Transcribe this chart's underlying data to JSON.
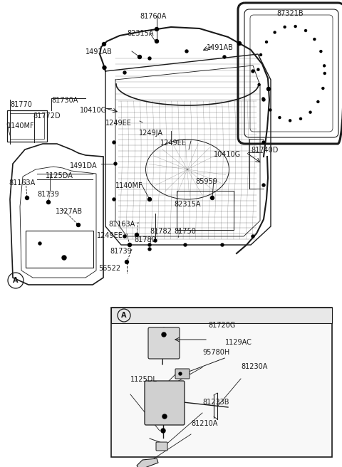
{
  "bg_color": "#ffffff",
  "line_color": "#1a1a1a",
  "fig_w": 4.8,
  "fig_h": 6.56,
  "dpi": 100,
  "labels_main": [
    [
      "81760A",
      215,
      18,
      "center"
    ],
    [
      "87321B",
      388,
      14,
      "left"
    ],
    [
      "82315A",
      197,
      42,
      "center"
    ],
    [
      "1491AB",
      158,
      68,
      "right"
    ],
    [
      "1491AB",
      290,
      62,
      "left"
    ],
    [
      "81770",
      14,
      142,
      "left"
    ],
    [
      "81730A",
      72,
      136,
      "left"
    ],
    [
      "10410G",
      112,
      150,
      "left"
    ],
    [
      "81772D",
      46,
      158,
      "left"
    ],
    [
      "1140MF",
      10,
      172,
      "left"
    ],
    [
      "1249EE",
      148,
      168,
      "left"
    ],
    [
      "1249JA",
      195,
      182,
      "left"
    ],
    [
      "1249EE",
      225,
      196,
      "left"
    ],
    [
      "10410G",
      300,
      212,
      "left"
    ],
    [
      "81740D",
      352,
      206,
      "left"
    ],
    [
      "1125DA",
      64,
      242,
      "left"
    ],
    [
      "81163A",
      12,
      252,
      "left"
    ],
    [
      "81739",
      52,
      268,
      "left"
    ],
    [
      "1491DA",
      98,
      228,
      "left"
    ],
    [
      "1327AB",
      78,
      292,
      "left"
    ],
    [
      "1140MF",
      162,
      256,
      "left"
    ],
    [
      "85959",
      274,
      250,
      "left"
    ],
    [
      "82315A",
      244,
      282,
      "left"
    ],
    [
      "81782",
      210,
      320,
      "left"
    ],
    [
      "81750",
      244,
      320,
      "left"
    ],
    [
      "81163A",
      152,
      310,
      "left"
    ],
    [
      "1249EE",
      136,
      326,
      "left"
    ],
    [
      "81780",
      188,
      332,
      "left"
    ],
    [
      "81739",
      154,
      348,
      "left"
    ],
    [
      "56522",
      138,
      372,
      "left"
    ]
  ],
  "labels_inset": [
    [
      "81720G",
      292,
      452,
      "left"
    ],
    [
      "1129AC",
      316,
      476,
      "left"
    ],
    [
      "95780H",
      284,
      490,
      "left"
    ],
    [
      "81230A",
      338,
      510,
      "left"
    ],
    [
      "1125DL",
      183,
      528,
      "left"
    ],
    [
      "81233B",
      284,
      560,
      "left"
    ],
    [
      "81210A",
      268,
      590,
      "left"
    ]
  ]
}
